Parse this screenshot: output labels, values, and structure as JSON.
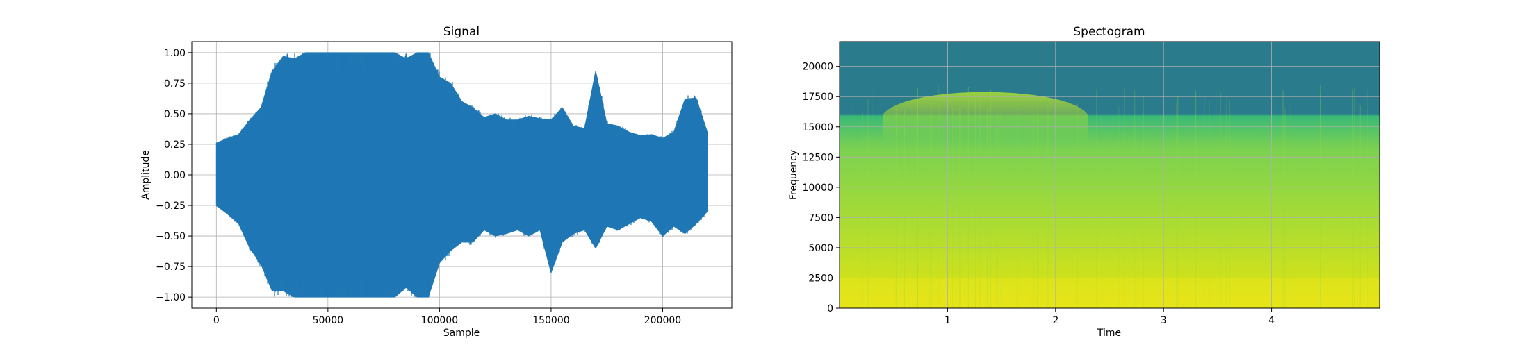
{
  "chart_data": [
    {
      "type": "line",
      "title": "Signal",
      "xlabel": "Sample",
      "ylabel": "Amplitude",
      "xlim": [
        -11000,
        231000
      ],
      "ylim": [
        -1.09,
        1.09
      ],
      "x_ticks": [
        0,
        50000,
        100000,
        150000,
        200000
      ],
      "x_tick_labels": [
        "0",
        "50000",
        "100000",
        "150000",
        "200000"
      ],
      "y_ticks": [
        -1.0,
        -0.75,
        -0.5,
        -0.25,
        0.0,
        0.25,
        0.5,
        0.75,
        1.0
      ],
      "y_tick_labels": [
        "−1.00",
        "−0.75",
        "−0.50",
        "−0.25",
        "0.00",
        "0.25",
        "0.50",
        "0.75",
        "1.00"
      ],
      "grid": true,
      "color": "#1f77b4",
      "series": [
        {
          "x": [
            0,
            5000,
            10000,
            15000,
            20000,
            25000,
            30000,
            35000,
            40000,
            45000,
            50000,
            55000,
            60000,
            65000,
            70000,
            75000,
            80000,
            85000,
            90000,
            95000,
            100000,
            105000,
            110000,
            115000,
            120000,
            125000,
            130000,
            135000,
            140000,
            145000,
            150000,
            155000,
            160000,
            165000,
            170000,
            175000,
            180000,
            185000,
            190000,
            195000,
            200000,
            205000,
            210000,
            215000,
            220000
          ],
          "y_max": [
            0.26,
            0.3,
            0.33,
            0.45,
            0.55,
            0.85,
            0.97,
            0.95,
            1.0,
            1.0,
            1.0,
            1.0,
            1.0,
            1.0,
            1.0,
            1.0,
            1.0,
            0.95,
            1.0,
            1.0,
            0.8,
            0.75,
            0.6,
            0.55,
            0.47,
            0.5,
            0.45,
            0.45,
            0.48,
            0.46,
            0.45,
            0.55,
            0.4,
            0.38,
            0.85,
            0.42,
            0.4,
            0.35,
            0.32,
            0.33,
            0.3,
            0.35,
            0.62,
            0.63,
            0.35
          ],
          "y_min": [
            -0.25,
            -0.32,
            -0.4,
            -0.6,
            -0.73,
            -0.95,
            -0.95,
            -1.0,
            -1.0,
            -1.0,
            -1.0,
            -1.0,
            -1.0,
            -1.0,
            -1.0,
            -1.0,
            -1.0,
            -0.92,
            -1.0,
            -1.0,
            -0.72,
            -0.62,
            -0.55,
            -0.55,
            -0.45,
            -0.5,
            -0.48,
            -0.45,
            -0.5,
            -0.45,
            -0.8,
            -0.55,
            -0.48,
            -0.45,
            -0.6,
            -0.42,
            -0.45,
            -0.4,
            -0.35,
            -0.38,
            -0.5,
            -0.42,
            -0.48,
            -0.4,
            -0.3
          ]
        }
      ]
    },
    {
      "type": "heatmap",
      "title": "Spectogram",
      "xlabel": "Time",
      "ylabel": "Frequency",
      "xlim": [
        0,
        5.0
      ],
      "ylim": [
        0,
        22050
      ],
      "x_ticks": [
        1,
        2,
        3,
        4
      ],
      "x_tick_labels": [
        "1",
        "2",
        "3",
        "4"
      ],
      "y_ticks": [
        0,
        2500,
        5000,
        7500,
        10000,
        12500,
        15000,
        17500,
        20000
      ],
      "y_tick_labels": [
        "0",
        "2500",
        "5000",
        "7500",
        "10000",
        "12500",
        "15000",
        "17500",
        "20000"
      ],
      "grid": true,
      "colormap": "viridis",
      "upper_band_color": "#2a7b8c",
      "cutoff_frequency": 16000,
      "high_energy_time_range": [
        0.4,
        2.3
      ],
      "high_energy_upper_frequency": 18500
    }
  ]
}
